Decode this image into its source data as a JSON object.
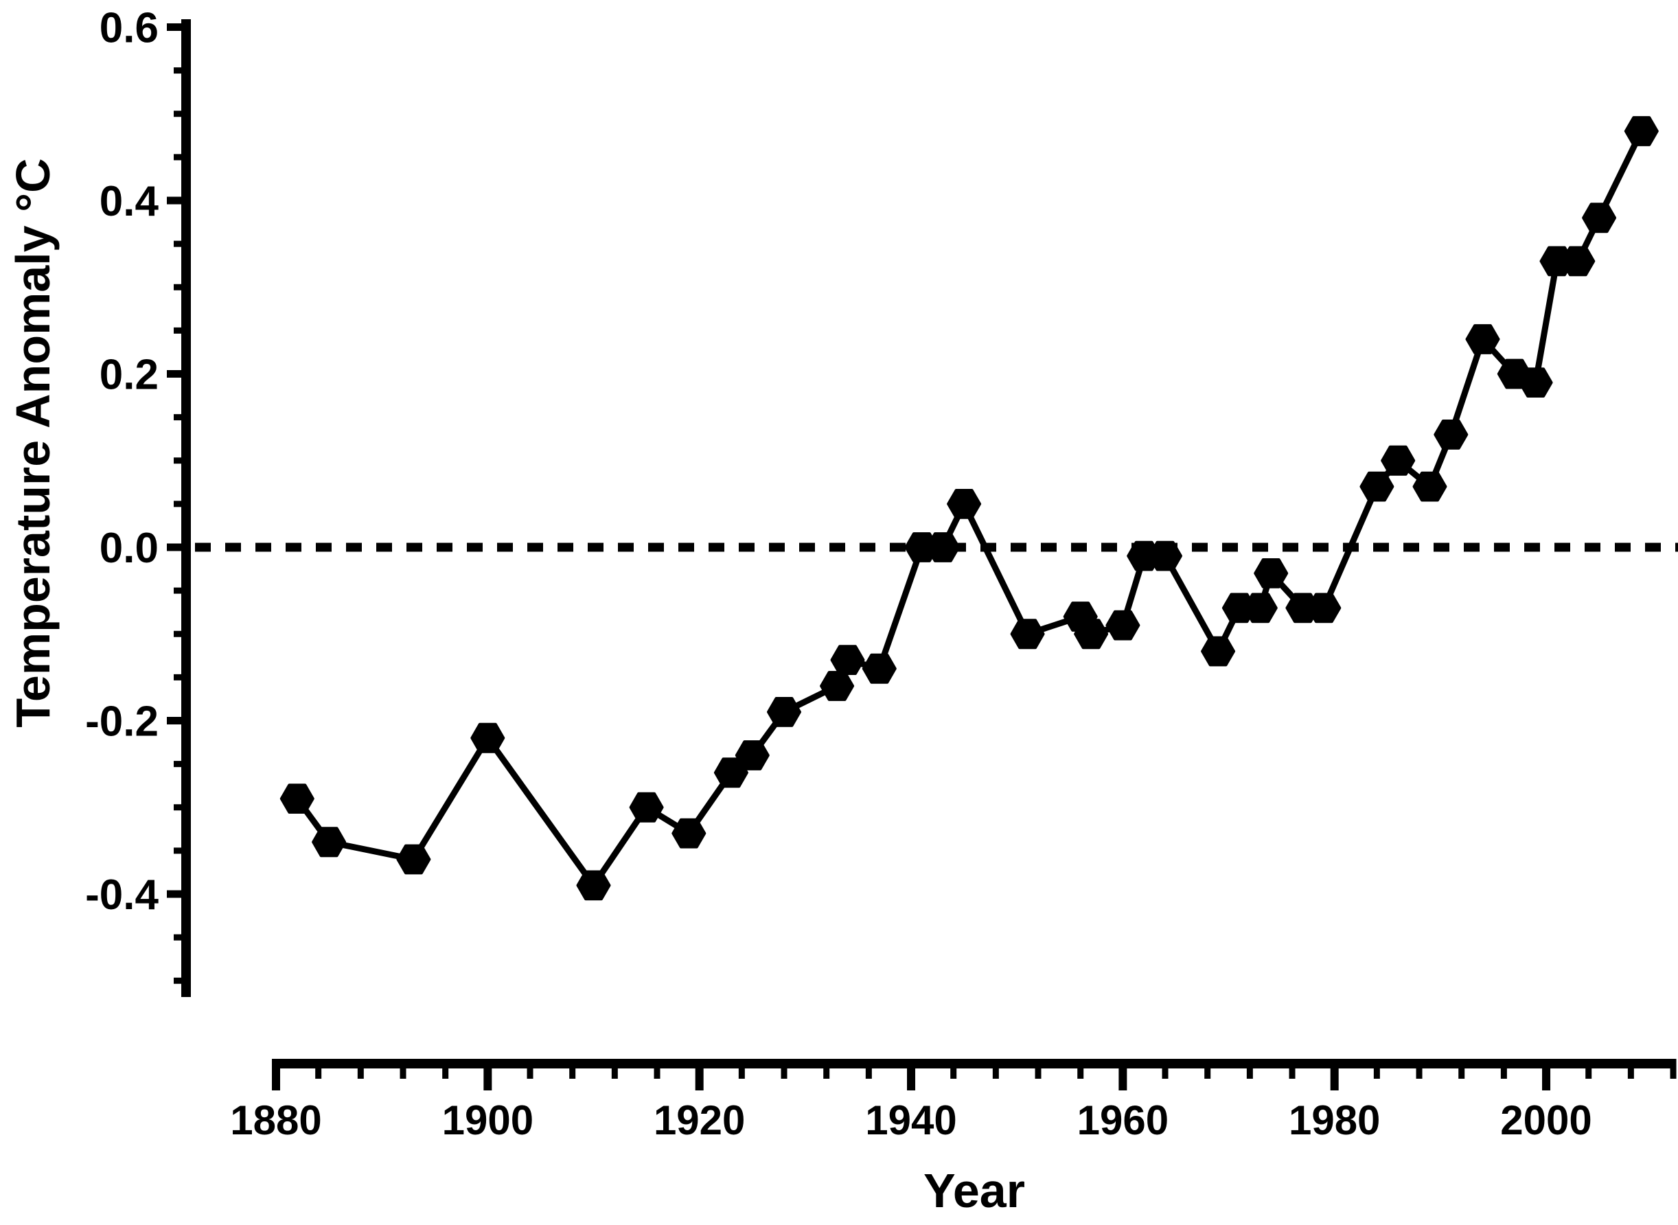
{
  "chart_data": {
    "type": "line",
    "title": "",
    "xlabel": "Year",
    "ylabel": "Temperature Anomaly °C",
    "colors": {
      "axis": "#000000",
      "series": "#000000",
      "background": "#ffffff"
    },
    "grid": "off",
    "legend": "none",
    "marker": "hexagon",
    "x_axis": {
      "min": 1880,
      "max": 2012,
      "major_ticks": [
        {
          "value": 1880,
          "label": "1880"
        },
        {
          "value": 1900,
          "label": "1900"
        },
        {
          "value": 1920,
          "label": "1920"
        },
        {
          "value": 1940,
          "label": "1940"
        },
        {
          "value": 1960,
          "label": "1960"
        },
        {
          "value": 1980,
          "label": "1980"
        },
        {
          "value": 2000,
          "label": "2000"
        }
      ],
      "minor_tick_step": 4,
      "minor_range": [
        1884,
        2012
      ]
    },
    "y_axis": {
      "min": -0.52,
      "max": 0.62,
      "major_ticks": [
        {
          "value": 0.6,
          "label": "0.6"
        },
        {
          "value": 0.4,
          "label": "0.4"
        },
        {
          "value": 0.2,
          "label": "0.2"
        },
        {
          "value": 0.0,
          "label": "0.0"
        },
        {
          "value": -0.2,
          "label": "-0.2"
        },
        {
          "value": -0.4,
          "label": "-0.4"
        }
      ],
      "minor_tick_step": 0.05,
      "minor_range": [
        -0.5,
        0.6
      ]
    },
    "zero_reference_line": {
      "value": 0,
      "style": "dotted"
    },
    "series": [
      {
        "name": "temperature-anomaly",
        "color": "#000000",
        "points": [
          [
            1882,
            -0.29
          ],
          [
            1885,
            -0.34
          ],
          [
            1893,
            -0.36
          ],
          [
            1900,
            -0.22
          ],
          [
            1910,
            -0.39
          ],
          [
            1915,
            -0.3
          ],
          [
            1919,
            -0.33
          ],
          [
            1923,
            -0.26
          ],
          [
            1925,
            -0.24
          ],
          [
            1928,
            -0.19
          ],
          [
            1933,
            -0.16
          ],
          [
            1934,
            -0.13
          ],
          [
            1937,
            -0.14
          ],
          [
            1941,
            0.0
          ],
          [
            1943,
            0.0
          ],
          [
            1945,
            0.05
          ],
          [
            1951,
            -0.1
          ],
          [
            1956,
            -0.08
          ],
          [
            1957,
            -0.1
          ],
          [
            1960,
            -0.09
          ],
          [
            1962,
            -0.01
          ],
          [
            1964,
            -0.01
          ],
          [
            1969,
            -0.12
          ],
          [
            1971,
            -0.07
          ],
          [
            1973,
            -0.07
          ],
          [
            1974,
            -0.03
          ],
          [
            1977,
            -0.07
          ],
          [
            1979,
            -0.07
          ],
          [
            1984,
            0.07
          ],
          [
            1986,
            0.1
          ],
          [
            1989,
            0.07
          ],
          [
            1991,
            0.13
          ],
          [
            1994,
            0.24
          ],
          [
            1997,
            0.2
          ],
          [
            1999,
            0.19
          ],
          [
            2001,
            0.33
          ],
          [
            2003,
            0.33
          ],
          [
            2005,
            0.38
          ],
          [
            2009,
            0.48
          ]
        ]
      }
    ]
  },
  "axis_labels": {
    "x": "Year",
    "y": "Temperature Anomaly °C"
  }
}
